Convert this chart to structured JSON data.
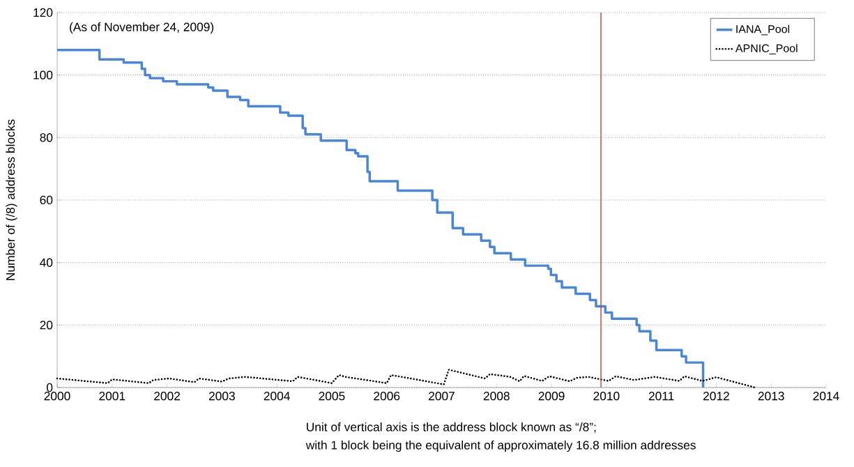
{
  "chart_data": {
    "type": "line",
    "ylabel": "Number of (/8) address blocks",
    "xlim": [
      2000,
      2014
    ],
    "xticks": [
      2000,
      2001,
      2002,
      2003,
      2004,
      2005,
      2006,
      2007,
      2008,
      2009,
      2010,
      2011,
      2012,
      2013,
      2014
    ],
    "ylim": [
      0,
      120
    ],
    "yticks": [
      0,
      20,
      40,
      60,
      80,
      100,
      120
    ],
    "grid": "y",
    "legend": "top right",
    "marker": "none",
    "series": [
      {
        "name": "IANA_Pool",
        "type": "step",
        "color": "#4a86d8",
        "line_style": "solid",
        "x": [
          2000,
          2000.77,
          2001.21,
          2001.54,
          2001.6,
          2001.69,
          2001.93,
          2002.18,
          2002.75,
          2002.84,
          2003.1,
          2003.33,
          2003.48,
          2004.06,
          2004.21,
          2004.47,
          2004.52,
          2004.8,
          2005.27,
          2005.43,
          2005.48,
          2005.65,
          2005.69,
          2006.2,
          2006.83,
          2006.92,
          2007.2,
          2007.39,
          2007.72,
          2007.88,
          2007.96,
          2008.26,
          2008.52,
          2008.94,
          2008.99,
          2009.09,
          2009.19,
          2009.44,
          2009.7,
          2009.81,
          2009.98,
          2010.1,
          2010.55,
          2010.6,
          2010.8,
          2010.91,
          2011.37,
          2011.45,
          2011.76
        ],
        "values": [
          108,
          105,
          104,
          102,
          100,
          99,
          98,
          97,
          96,
          95,
          93,
          92,
          90,
          88,
          87,
          83,
          81,
          79,
          76,
          75,
          74,
          69,
          66,
          63,
          60,
          56,
          51,
          49,
          47,
          45,
          43,
          41,
          39,
          38,
          36,
          34,
          32,
          30,
          28,
          26,
          24,
          22,
          20,
          18,
          15,
          12,
          10,
          8,
          0
        ]
      },
      {
        "name": "APNIC_Pool",
        "color": "#000000",
        "line_style": "dotted",
        "x": [
          2000,
          2000.92,
          2001.0,
          2001.67,
          2001.75,
          2002.04,
          2002.5,
          2002.58,
          2003.0,
          2003.13,
          2003.42,
          2004.29,
          2004.38,
          2005.0,
          2005.13,
          2005.25,
          2006.0,
          2006.08,
          2007.04,
          2007.13,
          2007.79,
          2007.88,
          2008.25,
          2008.42,
          2008.5,
          2008.83,
          2008.96,
          2009.33,
          2009.46,
          2009.67,
          2010.04,
          2010.17,
          2010.5,
          2010.88,
          2011.33,
          2011.42,
          2011.75,
          2012.0,
          2012.71
        ],
        "values": [
          2.9,
          1.4,
          2.6,
          1.4,
          2.4,
          2.9,
          1.7,
          2.9,
          1.9,
          2.9,
          3.4,
          2.0,
          3.4,
          1.4,
          4.0,
          3.4,
          1.4,
          4.0,
          1.0,
          5.7,
          2.9,
          4.3,
          3.4,
          2.0,
          3.7,
          2.1,
          3.6,
          2.0,
          3.1,
          3.4,
          2.1,
          3.6,
          2.4,
          3.4,
          2.1,
          3.6,
          2.1,
          3.3,
          0
        ]
      }
    ],
    "ref_lines": [
      {
        "axis": "x",
        "value": 2009.9,
        "color": "#d03030"
      }
    ],
    "annotations": [
      "(As of November 24, 2009)",
      "Unit of vertical axis is the address block known as “/8”;",
      "with 1 block being the equivalent of approximately 16.8 million addresses"
    ]
  }
}
